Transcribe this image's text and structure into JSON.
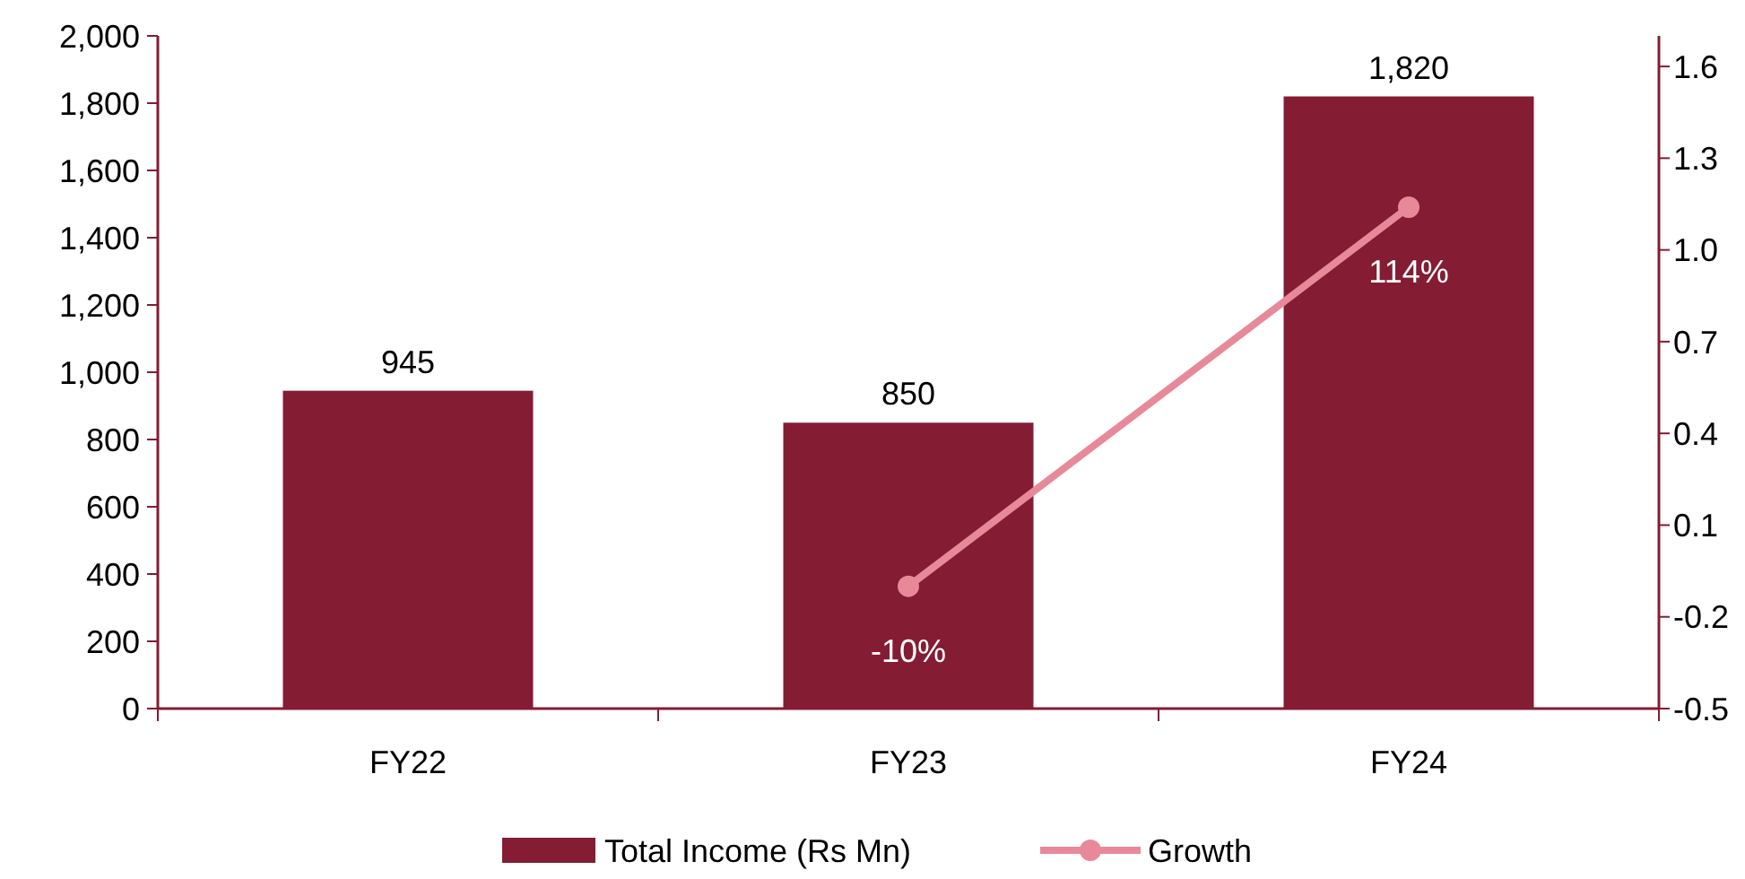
{
  "chart_data": {
    "type": "bar",
    "categories": [
      "FY22",
      "FY23",
      "FY24"
    ],
    "series": [
      {
        "name": "Total Income (Rs Mn)",
        "color": "#841c34",
        "values": [
          945,
          850,
          1820
        ],
        "value_labels": [
          "945",
          "850",
          "1,820"
        ]
      },
      {
        "name": "Growth",
        "type": "line",
        "axis": "y2",
        "color": "#e8899a",
        "values": [
          null,
          -0.1,
          1.14
        ],
        "value_labels": [
          null,
          "-10%",
          "114%"
        ]
      }
    ],
    "ylim": [
      0,
      2000
    ],
    "yticks": [
      0,
      {
        "value": 200,
        "label": "200"
      },
      {
        "value": 400,
        "label": "400"
      },
      {
        "value": 600,
        "label": "600"
      },
      {
        "value": 800,
        "label": "800"
      },
      {
        "value": 1000,
        "label": "1,000"
      },
      {
        "value": 1200,
        "label": "1,200"
      },
      {
        "value": 1400,
        "label": "1,400"
      },
      {
        "value": 1600,
        "label": "1,600"
      },
      {
        "value": 1800,
        "label": "1,800"
      },
      {
        "value": 2000,
        "label": "2,000"
      }
    ],
    "y2lim": [
      -0.5,
      1.7
    ],
    "y2ticks": [
      -0.5,
      -0.2,
      0.1,
      0.4,
      0.7,
      {
        "value": 1,
        "label": "1.0"
      },
      1.3,
      1.6
    ],
    "marker": "circle",
    "grid": false,
    "legend": "bottom"
  }
}
